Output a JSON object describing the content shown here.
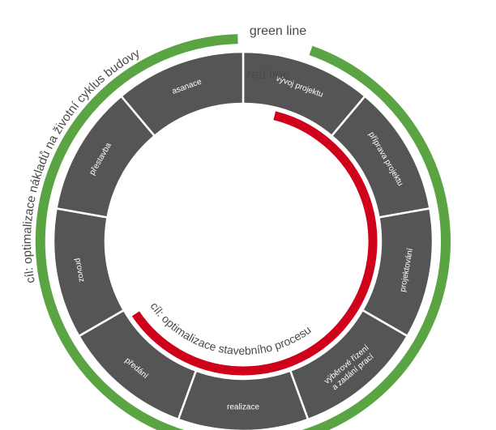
{
  "colors": {
    "outer_ring": "#5aa443",
    "red_ring": "#d0021b",
    "segment_fill": "#555555",
    "segment_border": "#ffffff",
    "segment_text": "#ffffff",
    "ring_text": "#4a4a4a",
    "background": "#ffffff"
  },
  "labels": {
    "green_line": "green line",
    "red_line": "red line",
    "outer_goal": "cíl: optimalizace nákladů na životní cyklus budovy",
    "inner_goal": "cíl: optimalizace stavebního procesu"
  },
  "segments": [
    {
      "lines": [
        "vývoj projektu"
      ]
    },
    {
      "lines": [
        "příprava projektu"
      ]
    },
    {
      "lines": [
        "projektování"
      ]
    },
    {
      "lines": [
        "výběrové řízení",
        "a zadání prací"
      ]
    },
    {
      "lines": [
        "realizace"
      ]
    },
    {
      "lines": [
        "předání"
      ]
    },
    {
      "lines": [
        "provoz"
      ]
    },
    {
      "lines": [
        "přestavba"
      ]
    },
    {
      "lines": [
        "asanace"
      ]
    }
  ]
}
